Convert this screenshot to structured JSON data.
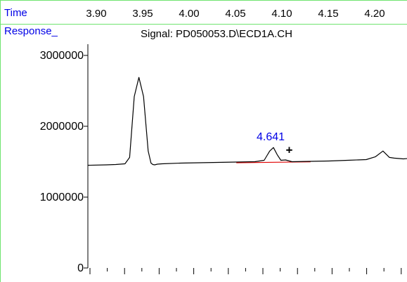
{
  "header": {
    "time_label": "Time",
    "response_label": "Response_",
    "time_ticks": [
      "3.90",
      "3.95",
      "4.00",
      "4.05",
      "4.10",
      "4.15",
      "4.20"
    ]
  },
  "colors": {
    "frame": "#6fe46f",
    "header_text": "#0000e6",
    "trace": "#000000",
    "baseline": "#e00000",
    "peak_label": "#0000e6"
  },
  "chart_data": {
    "type": "line",
    "title": "Signal: PD050053.D\\ECD1A.CH",
    "ylim": [
      0,
      3000000
    ],
    "yticks": [
      {
        "value": 0,
        "label": "0"
      },
      {
        "value": 1000000,
        "label": "1000000"
      },
      {
        "value": 2000000,
        "label": "2000000"
      },
      {
        "value": 3000000,
        "label": "3000000"
      }
    ],
    "series": [
      {
        "x": [
          3.85,
          3.87,
          3.88,
          3.89,
          3.895,
          3.9,
          3.905,
          3.91,
          3.915,
          3.918,
          3.92,
          3.922,
          3.925,
          3.93,
          3.95,
          3.97,
          3.99,
          4.01,
          4.03,
          4.04,
          4.046,
          4.05,
          4.054,
          4.058,
          4.063,
          4.07,
          4.09,
          4.11,
          4.13,
          4.15,
          4.16,
          4.168,
          4.175,
          4.18,
          4.19,
          4.2,
          4.21,
          4.215,
          4.22,
          4.226,
          4.23,
          4.236
        ],
        "values": [
          1450000,
          1455000,
          1460000,
          1470000,
          1560000,
          2420000,
          2690000,
          2420000,
          1650000,
          1480000,
          1460000,
          1455000,
          1465000,
          1470000,
          1480000,
          1485000,
          1490000,
          1495000,
          1500000,
          1520000,
          1650000,
          1700000,
          1600000,
          1520000,
          1525000,
          1500000,
          1505000,
          1510000,
          1520000,
          1530000,
          1570000,
          1650000,
          1560000,
          1550000,
          1540000,
          1550000,
          1560000,
          1590000,
          1600000,
          1580000,
          1560000,
          1545000
        ]
      }
    ],
    "baseline": {
      "x": [
        4.01,
        4.09
      ],
      "values": [
        1485000,
        1498000
      ]
    },
    "annotations": [
      {
        "text": "4.641",
        "x": 4.047,
        "y": 1800000
      },
      {
        "text": "+",
        "x": 4.067,
        "y": 1650000
      }
    ]
  }
}
